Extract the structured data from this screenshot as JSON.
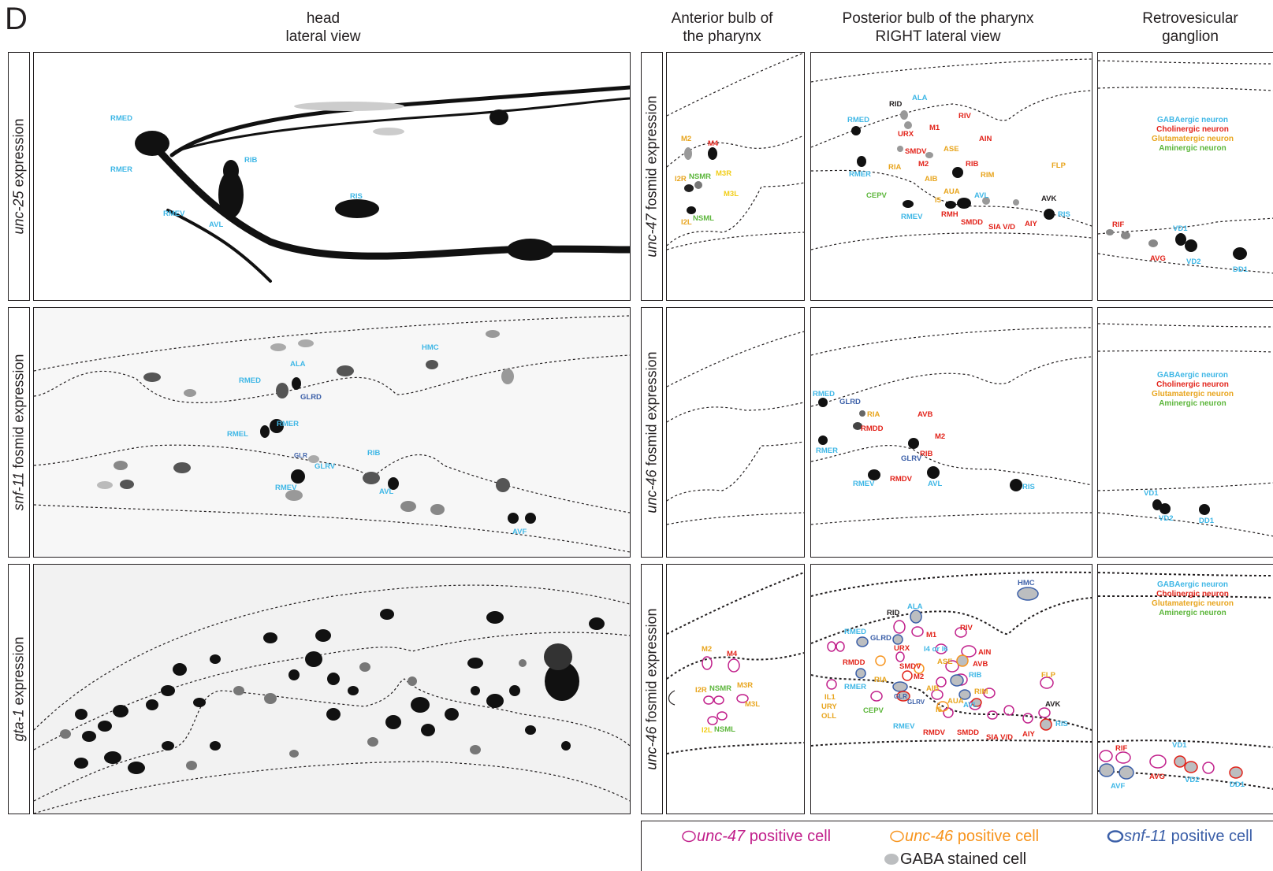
{
  "panel_letter": "D",
  "columns": {
    "head": {
      "line1": "head",
      "line2": "lateral view"
    },
    "anterior": {
      "line1": "Anterior bulb of",
      "line2": "the pharynx"
    },
    "posterior": {
      "line1": "Posterior bulb of the pharynx",
      "line2": "RIGHT lateral view"
    },
    "retro": {
      "line1": "Retrovesicular",
      "line2": "ganglion"
    }
  },
  "rows": {
    "r1_left": {
      "gene": "unc-25",
      "rest": " expression"
    },
    "r2_left": {
      "gene": "snf-11",
      "rest": " fosmid expression"
    },
    "r3_left": {
      "gene": "gta-1",
      "rest": " expression"
    },
    "r1_right": {
      "gene": "unc-47",
      "rest": " fosmid expression"
    },
    "r2_right": {
      "gene": "unc-46",
      "rest": " fosmid expression"
    },
    "r3_right": {
      "gene": "unc-46",
      "rest": " fosmid expression"
    }
  },
  "neuron_types": {
    "gaba": "GABAergic neuron",
    "cholinergic": "Cholinergic neuron",
    "glutamatergic": "Glutamatergic neuron",
    "aminergic": "Aminergic neuron"
  },
  "colors": {
    "gaba": "#3fb7e6",
    "cholinergic": "#e2231a",
    "glutamatergic": "#e8a51e",
    "aminergic": "#5cb63b",
    "unc47": "#c1208b",
    "unc46": "#f7941d",
    "snf11": "#3b5fa8",
    "gaba_stain": "#bcbec0"
  },
  "legend": {
    "unc47_gene": "unc-47",
    "unc47_rest": " positive cell",
    "unc46_gene": "unc-46",
    "unc46_rest": " positive cell",
    "snf11_gene": "snf-11",
    "snf11_rest": " positive cell",
    "gaba_stained": "GABA stained cell"
  },
  "labels": {
    "h1": [
      "RMED",
      "RMER",
      "RIB",
      "RIS",
      "RMEV",
      "AVL"
    ],
    "h2": [
      "HMC",
      "ALA",
      "RMED",
      "GLRD",
      "RMER",
      "RMEL",
      "RIB",
      "GLR",
      "GLRV",
      "RMEV",
      "AVL",
      "AVF"
    ],
    "a1": [
      "M2",
      "M4",
      "I2R",
      "NSMR",
      "M3R",
      "M3L",
      "I2L",
      "NSML"
    ],
    "a3": [
      "M2",
      "M4",
      "I2R",
      "NSMR",
      "M3R",
      "M3L",
      "I2L",
      "NSML"
    ],
    "p1": [
      "RID",
      "ALA",
      "RMED",
      "URX",
      "M1",
      "RIV",
      "SMDV",
      "AIN",
      "M2",
      "ASE",
      "RIB",
      "RMER",
      "RIA",
      "AIB",
      "RIM",
      "FLP",
      "AUA",
      "CEPV",
      "I5",
      "AVL",
      "AVK",
      "RMEV",
      "RMH",
      "SMDD",
      "SIA V/D",
      "AIY",
      "RIS"
    ],
    "p2": [
      "RMED",
      "GLRD",
      "RIA",
      "AVB",
      "RMDD",
      "M2",
      "RMER",
      "RIB",
      "GLRV",
      "RMEV",
      "RMDV",
      "AVL",
      "RIS"
    ],
    "p3": [
      "HMC",
      "RID",
      "ALA",
      "RMED",
      "GLRD",
      "M1",
      "RIV",
      "URX",
      "I4 or I6",
      "AIN",
      "RMDD",
      "SMDV",
      "ASE",
      "AVB",
      "M2",
      "RIA",
      "RIB",
      "RMER",
      "AIB",
      "RIM",
      "FLP",
      "IL1",
      "URY",
      "OLL",
      "GLR",
      "GLRV",
      "AUA",
      "AVL",
      "CEPV",
      "I5",
      "AVK",
      "RMEV",
      "RMDV",
      "SMDD",
      "SIA V/D",
      "AIY",
      "RIS"
    ],
    "r1": [
      "RIF",
      "VD1",
      "AVG",
      "VD2",
      "DD1"
    ],
    "r2": [
      "VD1",
      "VD2",
      "DD1"
    ],
    "r3": [
      "RIF",
      "VD1",
      "AVF",
      "AVG",
      "VD2",
      "DD1"
    ]
  }
}
